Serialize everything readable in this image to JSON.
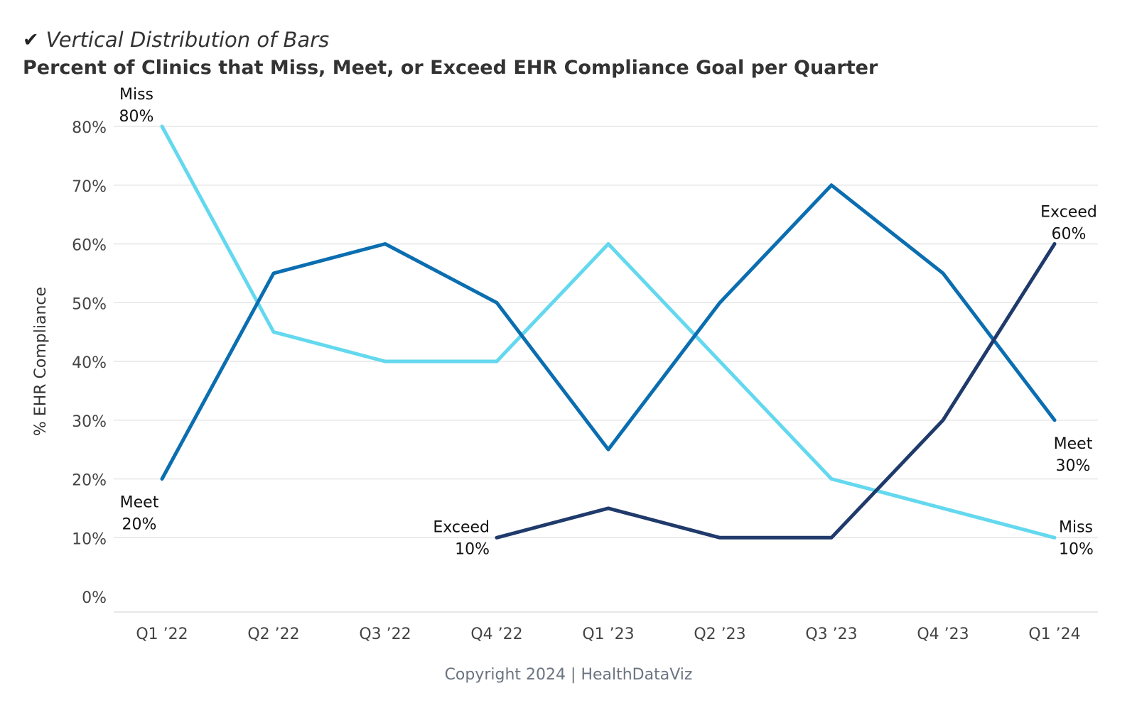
{
  "header": {
    "check_icon": "✔",
    "icon_name": "checkmark-icon",
    "subtitle": "Vertical Distribution of Bars",
    "title": "Percent of Clinics that Miss, Meet, or Exceed EHR Compliance Goal per Quarter"
  },
  "footer": {
    "copyright": "Copyright 2024 | HealthDataViz"
  },
  "chart_data": {
    "type": "line",
    "title": "Percent of Clinics that Miss, Meet, or Exceed EHR Compliance Goal per Quarter",
    "xlabel": "",
    "ylabel": "% EHR Compliance",
    "categories": [
      "Q1 ’22",
      "Q2 ’22",
      "Q3 ’22",
      "Q4 ’22",
      "Q1 ’23",
      "Q2 ’23",
      "Q3 ’23",
      "Q4 ’23",
      "Q1 ’24"
    ],
    "ylim": [
      0,
      80
    ],
    "yticks": [
      0,
      10,
      20,
      30,
      40,
      50,
      60,
      70,
      80
    ],
    "ytick_labels": [
      "0%",
      "10%",
      "20%",
      "30%",
      "40%",
      "50%",
      "60%",
      "70%",
      "80%"
    ],
    "grid": true,
    "legend": "none (direct labels)",
    "series": [
      {
        "name": "Miss",
        "color": "#63d8ee",
        "values": [
          80,
          45,
          40,
          40,
          60,
          40,
          20,
          15,
          10
        ]
      },
      {
        "name": "Meet",
        "color": "#0a6eb0",
        "values": [
          20,
          55,
          60,
          50,
          25,
          50,
          70,
          55,
          30
        ]
      },
      {
        "name": "Exceed",
        "color": "#1f3a6b",
        "values": [
          null,
          null,
          null,
          10,
          15,
          10,
          10,
          30,
          60
        ]
      }
    ],
    "annotations": [
      {
        "series": "Miss",
        "text": "Miss",
        "value": "80%",
        "index": 0,
        "placement": "above"
      },
      {
        "series": "Meet",
        "text": "Meet",
        "value": "20%",
        "index": 0,
        "placement": "below"
      },
      {
        "series": "Exceed",
        "text": "Exceed",
        "value": "10%",
        "index": 3,
        "placement": "left"
      },
      {
        "series": "Exceed",
        "text": "Exceed",
        "value": "60%",
        "index": 8,
        "placement": "above"
      },
      {
        "series": "Meet",
        "text": "Meet",
        "value": "30%",
        "index": 8,
        "placement": "below"
      },
      {
        "series": "Miss",
        "text": "Miss",
        "value": "10%",
        "index": 8,
        "placement": "right"
      }
    ]
  }
}
